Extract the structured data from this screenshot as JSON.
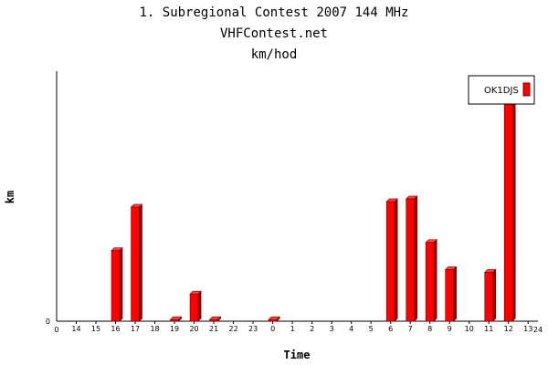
{
  "chart_data": {
    "type": "bar",
    "title": "1. Subregional Contest 2007 144 MHz",
    "subtitle": "VHFContest.net",
    "subtitle2": "km/hod",
    "xlabel": "Time",
    "ylabel": "km",
    "categories": [
      "14",
      "15",
      "16",
      "17",
      "18",
      "19",
      "20",
      "21",
      "22",
      "23",
      "0",
      "1",
      "2",
      "3",
      "4",
      "5",
      "6",
      "7",
      "8",
      "9",
      "10",
      "11",
      "12",
      "13"
    ],
    "x_axis_start_label": "0",
    "x_axis_end_label": "24",
    "y_tick_label": "0",
    "legend_position": "top-right",
    "series": [
      {
        "name": "OK1DJS",
        "color": "#ff0000",
        "values": [
          0,
          0,
          26,
          42,
          0,
          0.6,
          10,
          0.6,
          0,
          0,
          0.6,
          0,
          0,
          0,
          0,
          0,
          44,
          45,
          29,
          19,
          0,
          18,
          80,
          0
        ]
      }
    ],
    "ylim": [
      0,
      92
    ]
  }
}
